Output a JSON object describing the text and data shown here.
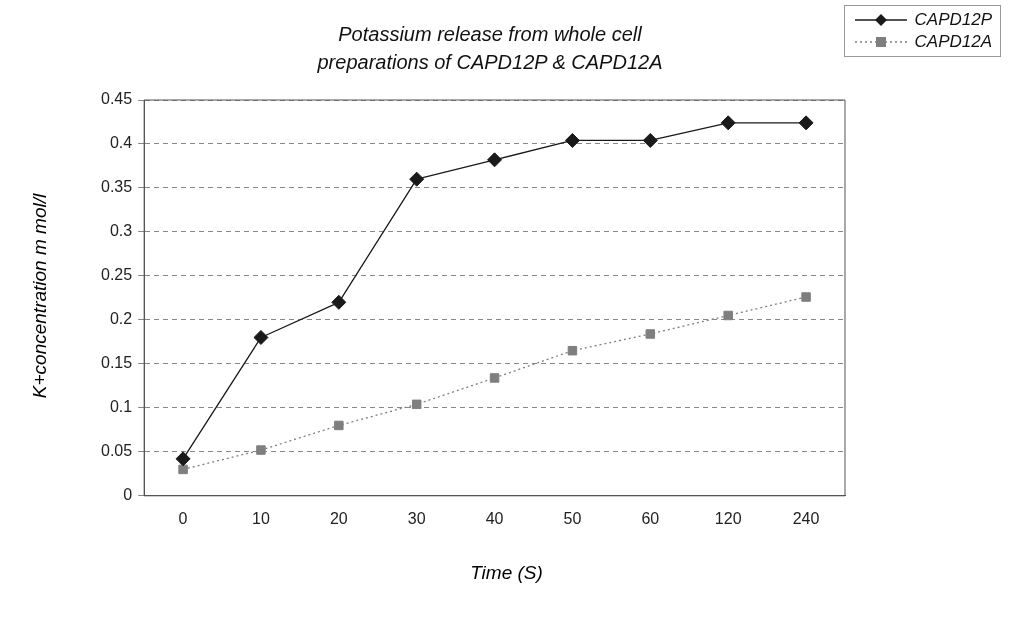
{
  "chart_data": {
    "type": "line",
    "title": "Potassium release from whole cell preparations of CAPD12P & CAPD12A",
    "xlabel": "Time (S)",
    "ylabel": "K+concentration m mol/l",
    "categories": [
      "0",
      "10",
      "20",
      "30",
      "40",
      "50",
      "60",
      "120",
      "240"
    ],
    "series": [
      {
        "name": "CAPD12P",
        "color": "#1a1a1a",
        "marker": "diamond",
        "line_style": "solid",
        "values": [
          0.042,
          0.18,
          0.22,
          0.36,
          0.382,
          0.404,
          0.404,
          0.424,
          0.424
        ]
      },
      {
        "name": "CAPD12A",
        "color": "#7f7f7f",
        "marker": "square",
        "line_style": "dotted",
        "values": [
          0.03,
          0.052,
          0.08,
          0.104,
          0.134,
          0.165,
          0.184,
          0.205,
          0.226
        ]
      }
    ],
    "ylim": [
      0,
      0.45
    ],
    "yticks": [
      0,
      0.05,
      0.1,
      0.15,
      0.2,
      0.25,
      0.3,
      0.35,
      0.4,
      0.45
    ],
    "grid": "y",
    "legend": "top right"
  }
}
